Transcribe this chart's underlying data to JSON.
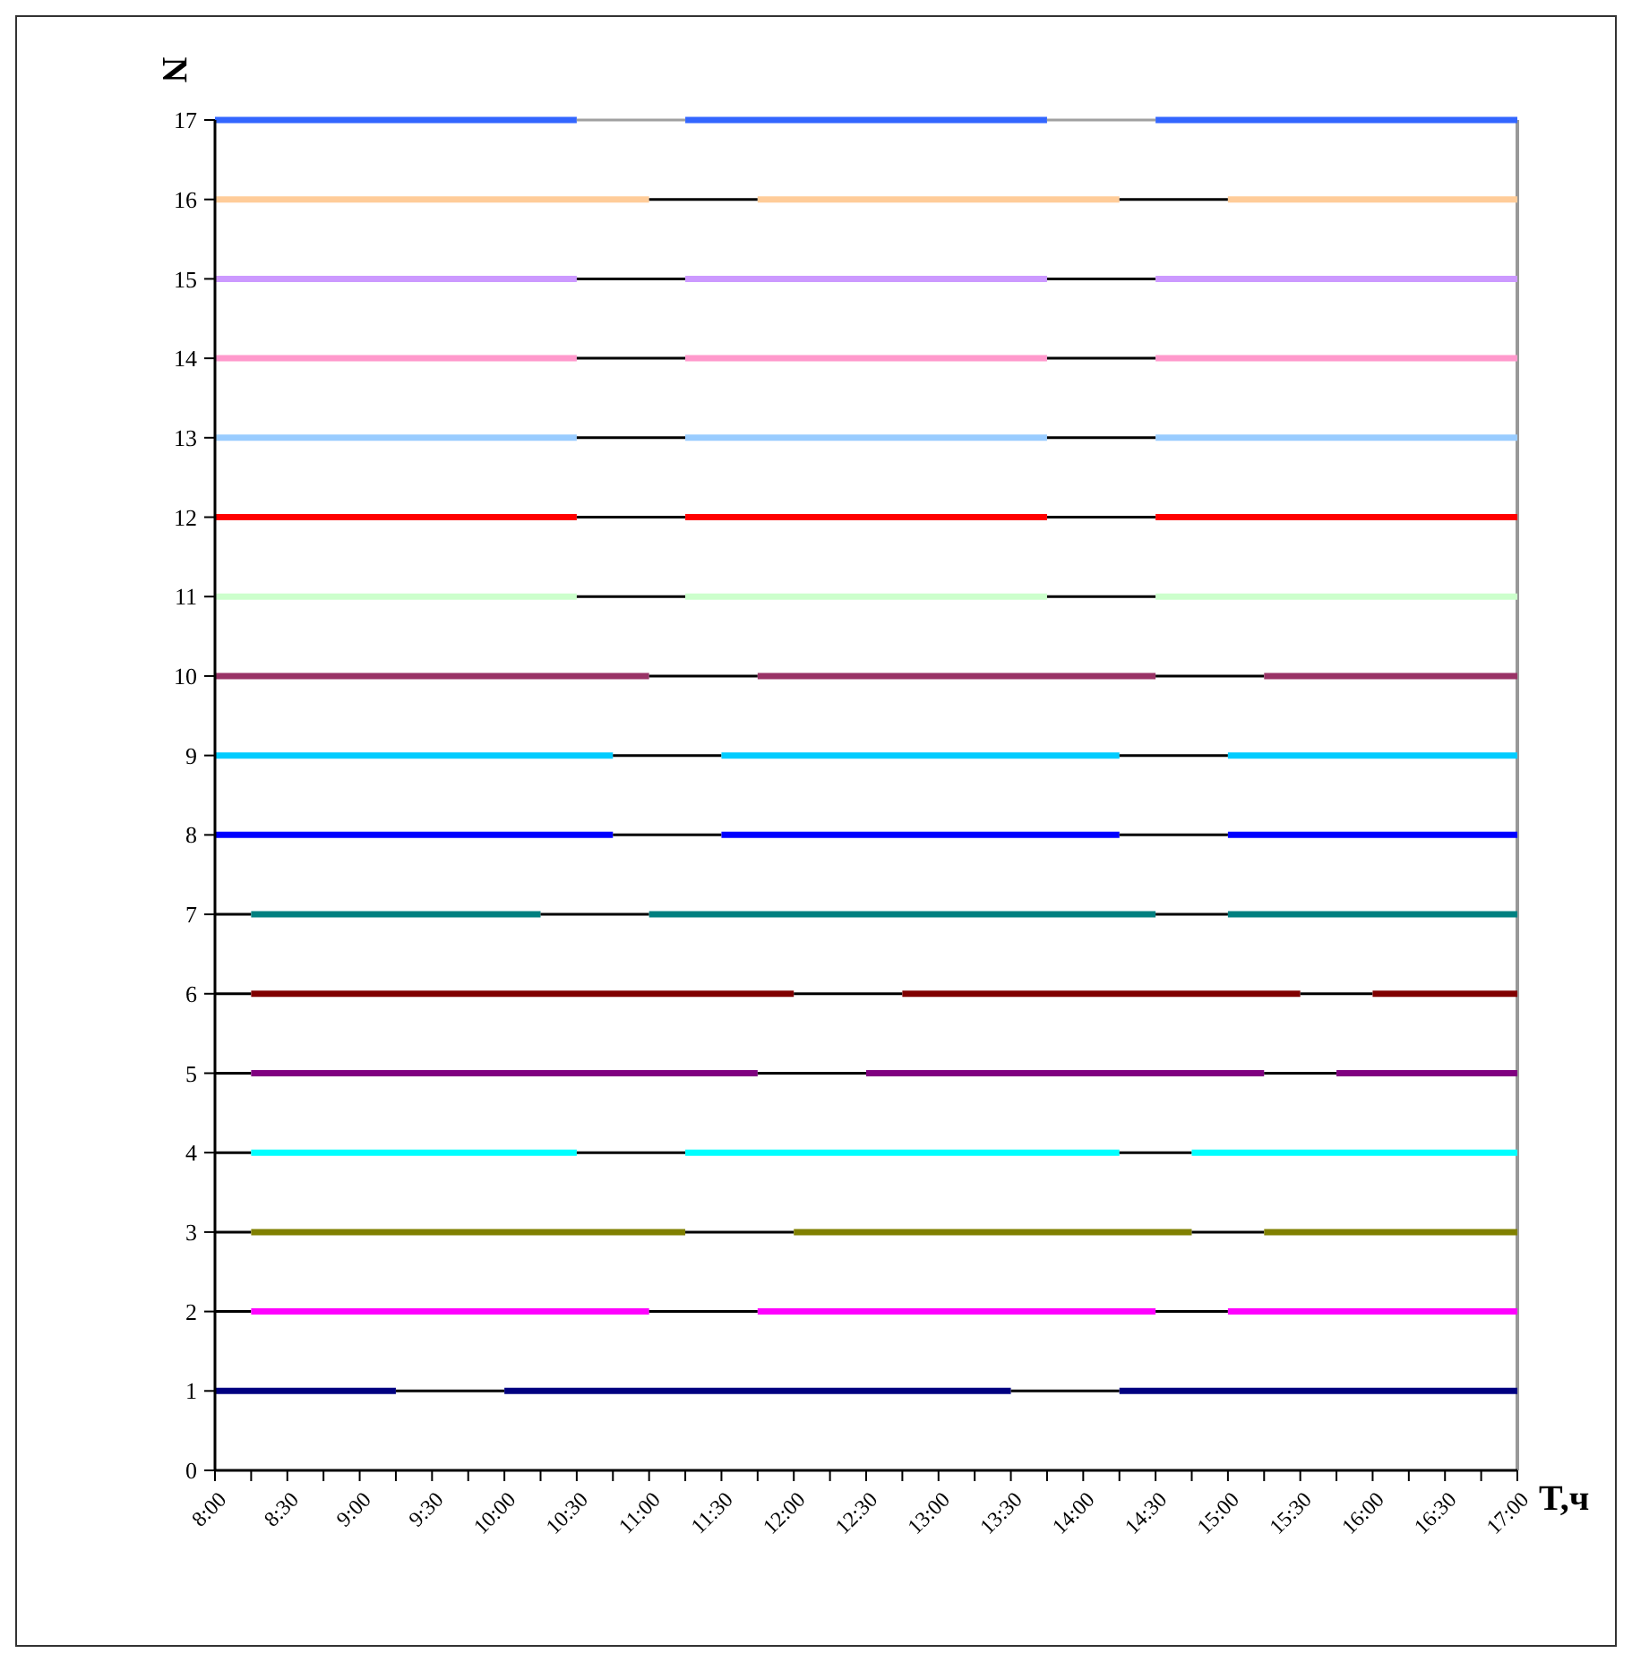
{
  "chart_data": {
    "type": "line",
    "xlabel": "T,ч",
    "ylabel": "N",
    "xlim": [
      8,
      17
    ],
    "ylim": [
      0,
      17
    ],
    "grid": false,
    "marker": "none",
    "yticks": [
      0,
      1,
      2,
      3,
      4,
      5,
      6,
      7,
      8,
      9,
      10,
      11,
      12,
      13,
      14,
      15,
      16,
      17
    ],
    "xticks": [
      {
        "value": 8,
        "label": "8:00"
      },
      {
        "value": 8.25,
        "label": null
      },
      {
        "value": 8.5,
        "label": "8:30"
      },
      {
        "value": 8.75,
        "label": null
      },
      {
        "value": 9,
        "label": "9:00"
      },
      {
        "value": 9.25,
        "label": null
      },
      {
        "value": 9.5,
        "label": "9:30"
      },
      {
        "value": 9.75,
        "label": null
      },
      {
        "value": 10,
        "label": "10:00"
      },
      {
        "value": 10.25,
        "label": null
      },
      {
        "value": 10.5,
        "label": "10:30"
      },
      {
        "value": 10.75,
        "label": null
      },
      {
        "value": 11,
        "label": "11:00"
      },
      {
        "value": 11.25,
        "label": null
      },
      {
        "value": 11.5,
        "label": "11:30"
      },
      {
        "value": 11.75,
        "label": null
      },
      {
        "value": 12,
        "label": "12:00"
      },
      {
        "value": 12.25,
        "label": null
      },
      {
        "value": 12.5,
        "label": "12:30"
      },
      {
        "value": 12.75,
        "label": null
      },
      {
        "value": 13,
        "label": "13:00"
      },
      {
        "value": 13.25,
        "label": null
      },
      {
        "value": 13.5,
        "label": "13:30"
      },
      {
        "value": 13.75,
        "label": null
      },
      {
        "value": 14,
        "label": "14:00"
      },
      {
        "value": 14.25,
        "label": null
      },
      {
        "value": 14.5,
        "label": "14:30"
      },
      {
        "value": 14.75,
        "label": null
      },
      {
        "value": 15,
        "label": "15:00"
      },
      {
        "value": 15.25,
        "label": null
      },
      {
        "value": 15.5,
        "label": "15:30"
      },
      {
        "value": 15.75,
        "label": null
      },
      {
        "value": 16,
        "label": "16:00"
      },
      {
        "value": 16.25,
        "label": null
      },
      {
        "value": 16.5,
        "label": "16:30"
      },
      {
        "value": 16.75,
        "label": null
      },
      {
        "value": 17,
        "label": "17:00"
      }
    ],
    "series": [
      {
        "color": "#3366ff",
        "x": [
          8,
          10.5
        ],
        "values": [
          17,
          17
        ]
      },
      {
        "color": "#a0a0a0",
        "x": [
          10.5,
          11.25
        ],
        "values": [
          17,
          17
        ]
      },
      {
        "color": "#3366ff",
        "x": [
          11.25,
          13.75
        ],
        "values": [
          17,
          17
        ]
      },
      {
        "color": "#a0a0a0",
        "x": [
          13.75,
          14.5
        ],
        "values": [
          17,
          17
        ]
      },
      {
        "color": "#3366ff",
        "x": [
          14.5,
          17
        ],
        "values": [
          17,
          17
        ]
      },
      {
        "color": "#ffcc99",
        "x": [
          8,
          11
        ],
        "values": [
          16,
          16
        ]
      },
      {
        "color": "#000000",
        "x": [
          11,
          11.75
        ],
        "values": [
          16,
          16
        ]
      },
      {
        "color": "#ffcc99",
        "x": [
          11.75,
          14.25
        ],
        "values": [
          16,
          16
        ]
      },
      {
        "color": "#000000",
        "x": [
          14.25,
          15
        ],
        "values": [
          16,
          16
        ]
      },
      {
        "color": "#ffcc99",
        "x": [
          15,
          17
        ],
        "values": [
          16,
          16
        ]
      },
      {
        "color": "#cc99ff",
        "x": [
          8,
          10.5
        ],
        "values": [
          15,
          15
        ]
      },
      {
        "color": "#000000",
        "x": [
          10.5,
          11.25
        ],
        "values": [
          15,
          15
        ]
      },
      {
        "color": "#cc99ff",
        "x": [
          11.25,
          13.75
        ],
        "values": [
          15,
          15
        ]
      },
      {
        "color": "#000000",
        "x": [
          13.75,
          14.5
        ],
        "values": [
          15,
          15
        ]
      },
      {
        "color": "#cc99ff",
        "x": [
          14.5,
          17
        ],
        "values": [
          15,
          15
        ]
      },
      {
        "color": "#ff99cc",
        "x": [
          8,
          10.5
        ],
        "values": [
          14,
          14
        ]
      },
      {
        "color": "#000000",
        "x": [
          10.5,
          11.25
        ],
        "values": [
          14,
          14
        ]
      },
      {
        "color": "#ff99cc",
        "x": [
          11.25,
          13.75
        ],
        "values": [
          14,
          14
        ]
      },
      {
        "color": "#000000",
        "x": [
          13.75,
          14.5
        ],
        "values": [
          14,
          14
        ]
      },
      {
        "color": "#ff99cc",
        "x": [
          14.5,
          17
        ],
        "values": [
          14,
          14
        ]
      },
      {
        "color": "#99ccff",
        "x": [
          8,
          10.5
        ],
        "values": [
          13,
          13
        ]
      },
      {
        "color": "#000000",
        "x": [
          10.5,
          11.25
        ],
        "values": [
          13,
          13
        ]
      },
      {
        "color": "#99ccff",
        "x": [
          11.25,
          13.75
        ],
        "values": [
          13,
          13
        ]
      },
      {
        "color": "#000000",
        "x": [
          13.75,
          14.5
        ],
        "values": [
          13,
          13
        ]
      },
      {
        "color": "#99ccff",
        "x": [
          14.5,
          17
        ],
        "values": [
          13,
          13
        ]
      },
      {
        "color": "#ff0000",
        "x": [
          8,
          10.5
        ],
        "values": [
          12,
          12
        ]
      },
      {
        "color": "#000000",
        "x": [
          10.5,
          11.25
        ],
        "values": [
          12,
          12
        ]
      },
      {
        "color": "#ff0000",
        "x": [
          11.25,
          13.75
        ],
        "values": [
          12,
          12
        ]
      },
      {
        "color": "#000000",
        "x": [
          13.75,
          14.5
        ],
        "values": [
          12,
          12
        ]
      },
      {
        "color": "#ff0000",
        "x": [
          14.5,
          17
        ],
        "values": [
          12,
          12
        ]
      },
      {
        "color": "#ccffcc",
        "x": [
          8,
          10.5
        ],
        "values": [
          11,
          11
        ]
      },
      {
        "color": "#000000",
        "x": [
          10.5,
          11.25
        ],
        "values": [
          11,
          11
        ]
      },
      {
        "color": "#ccffcc",
        "x": [
          11.25,
          13.75
        ],
        "values": [
          11,
          11
        ]
      },
      {
        "color": "#000000",
        "x": [
          13.75,
          14.5
        ],
        "values": [
          11,
          11
        ]
      },
      {
        "color": "#ccffcc",
        "x": [
          14.5,
          17
        ],
        "values": [
          11,
          11
        ]
      },
      {
        "color": "#993366",
        "x": [
          8,
          11
        ],
        "values": [
          10,
          10
        ]
      },
      {
        "color": "#000000",
        "x": [
          11,
          11.75
        ],
        "values": [
          10,
          10
        ]
      },
      {
        "color": "#993366",
        "x": [
          11.75,
          14.5
        ],
        "values": [
          10,
          10
        ]
      },
      {
        "color": "#000000",
        "x": [
          14.5,
          15.25
        ],
        "values": [
          10,
          10
        ]
      },
      {
        "color": "#993366",
        "x": [
          15.25,
          17
        ],
        "values": [
          10,
          10
        ]
      },
      {
        "color": "#00ccff",
        "x": [
          8,
          10.75
        ],
        "values": [
          9,
          9
        ]
      },
      {
        "color": "#000000",
        "x": [
          10.75,
          11.5
        ],
        "values": [
          9,
          9
        ]
      },
      {
        "color": "#00ccff",
        "x": [
          11.5,
          14.25
        ],
        "values": [
          9,
          9
        ]
      },
      {
        "color": "#000000",
        "x": [
          14.25,
          15
        ],
        "values": [
          9,
          9
        ]
      },
      {
        "color": "#00ccff",
        "x": [
          15,
          17
        ],
        "values": [
          9,
          9
        ]
      },
      {
        "color": "#0000ff",
        "x": [
          8,
          10.75
        ],
        "values": [
          8,
          8
        ]
      },
      {
        "color": "#000000",
        "x": [
          10.75,
          11.5
        ],
        "values": [
          8,
          8
        ]
      },
      {
        "color": "#0000ff",
        "x": [
          11.5,
          14.25
        ],
        "values": [
          8,
          8
        ]
      },
      {
        "color": "#000000",
        "x": [
          14.25,
          15
        ],
        "values": [
          8,
          8
        ]
      },
      {
        "color": "#0000ff",
        "x": [
          15,
          17
        ],
        "values": [
          8,
          8
        ]
      },
      {
        "color": "#000000",
        "x": [
          8,
          8.25
        ],
        "values": [
          7,
          7
        ]
      },
      {
        "color": "#008080",
        "x": [
          8.25,
          10.25
        ],
        "values": [
          7,
          7
        ]
      },
      {
        "color": "#000000",
        "x": [
          10.25,
          11
        ],
        "values": [
          7,
          7
        ]
      },
      {
        "color": "#008080",
        "x": [
          11,
          14.5
        ],
        "values": [
          7,
          7
        ]
      },
      {
        "color": "#000000",
        "x": [
          14.5,
          15
        ],
        "values": [
          7,
          7
        ]
      },
      {
        "color": "#008080",
        "x": [
          15,
          17
        ],
        "values": [
          7,
          7
        ]
      },
      {
        "color": "#000000",
        "x": [
          8,
          8.25
        ],
        "values": [
          6,
          6
        ]
      },
      {
        "color": "#800000",
        "x": [
          8.25,
          12
        ],
        "values": [
          6,
          6
        ]
      },
      {
        "color": "#000000",
        "x": [
          12,
          12.75
        ],
        "values": [
          6,
          6
        ]
      },
      {
        "color": "#800000",
        "x": [
          12.75,
          15.5
        ],
        "values": [
          6,
          6
        ]
      },
      {
        "color": "#000000",
        "x": [
          15.5,
          16
        ],
        "values": [
          6,
          6
        ]
      },
      {
        "color": "#800000",
        "x": [
          16,
          17
        ],
        "values": [
          6,
          6
        ]
      },
      {
        "color": "#000000",
        "x": [
          8,
          8.25
        ],
        "values": [
          5,
          5
        ]
      },
      {
        "color": "#800080",
        "x": [
          8.25,
          11.75
        ],
        "values": [
          5,
          5
        ]
      },
      {
        "color": "#000000",
        "x": [
          11.75,
          12.5
        ],
        "values": [
          5,
          5
        ]
      },
      {
        "color": "#800080",
        "x": [
          12.5,
          15.25
        ],
        "values": [
          5,
          5
        ]
      },
      {
        "color": "#000000",
        "x": [
          15.25,
          15.75
        ],
        "values": [
          5,
          5
        ]
      },
      {
        "color": "#800080",
        "x": [
          15.75,
          17
        ],
        "values": [
          5,
          5
        ]
      },
      {
        "color": "#000000",
        "x": [
          8,
          8.25
        ],
        "values": [
          4,
          4
        ]
      },
      {
        "color": "#00ffff",
        "x": [
          8.25,
          10.5
        ],
        "values": [
          4,
          4
        ]
      },
      {
        "color": "#000000",
        "x": [
          10.5,
          11.25
        ],
        "values": [
          4,
          4
        ]
      },
      {
        "color": "#00ffff",
        "x": [
          11.25,
          14.25
        ],
        "values": [
          4,
          4
        ]
      },
      {
        "color": "#000000",
        "x": [
          14.25,
          14.75
        ],
        "values": [
          4,
          4
        ]
      },
      {
        "color": "#00ffff",
        "x": [
          14.75,
          17
        ],
        "values": [
          4,
          4
        ]
      },
      {
        "color": "#000000",
        "x": [
          8,
          8.25
        ],
        "values": [
          3,
          3
        ]
      },
      {
        "color": "#808000",
        "x": [
          8.25,
          11.25
        ],
        "values": [
          3,
          3
        ]
      },
      {
        "color": "#000000",
        "x": [
          11.25,
          12
        ],
        "values": [
          3,
          3
        ]
      },
      {
        "color": "#808000",
        "x": [
          12,
          14.75
        ],
        "values": [
          3,
          3
        ]
      },
      {
        "color": "#000000",
        "x": [
          14.75,
          15.25
        ],
        "values": [
          3,
          3
        ]
      },
      {
        "color": "#808000",
        "x": [
          15.25,
          17
        ],
        "values": [
          3,
          3
        ]
      },
      {
        "color": "#000000",
        "x": [
          8,
          8.25
        ],
        "values": [
          2,
          2
        ]
      },
      {
        "color": "#ff00ff",
        "x": [
          8.25,
          11
        ],
        "values": [
          2,
          2
        ]
      },
      {
        "color": "#000000",
        "x": [
          11,
          11.75
        ],
        "values": [
          2,
          2
        ]
      },
      {
        "color": "#ff00ff",
        "x": [
          11.75,
          14.5
        ],
        "values": [
          2,
          2
        ]
      },
      {
        "color": "#000000",
        "x": [
          14.5,
          15
        ],
        "values": [
          2,
          2
        ]
      },
      {
        "color": "#ff00ff",
        "x": [
          15,
          17
        ],
        "values": [
          2,
          2
        ]
      },
      {
        "color": "#000080",
        "x": [
          8,
          9.25
        ],
        "values": [
          1,
          1
        ]
      },
      {
        "color": "#000000",
        "x": [
          9.25,
          10
        ],
        "values": [
          1,
          1
        ]
      },
      {
        "color": "#000080",
        "x": [
          10,
          13.5
        ],
        "values": [
          1,
          1
        ]
      },
      {
        "color": "#000000",
        "x": [
          13.5,
          14.25
        ],
        "values": [
          1,
          1
        ]
      },
      {
        "color": "#000080",
        "x": [
          14.25,
          17
        ],
        "values": [
          1,
          1
        ]
      }
    ]
  }
}
